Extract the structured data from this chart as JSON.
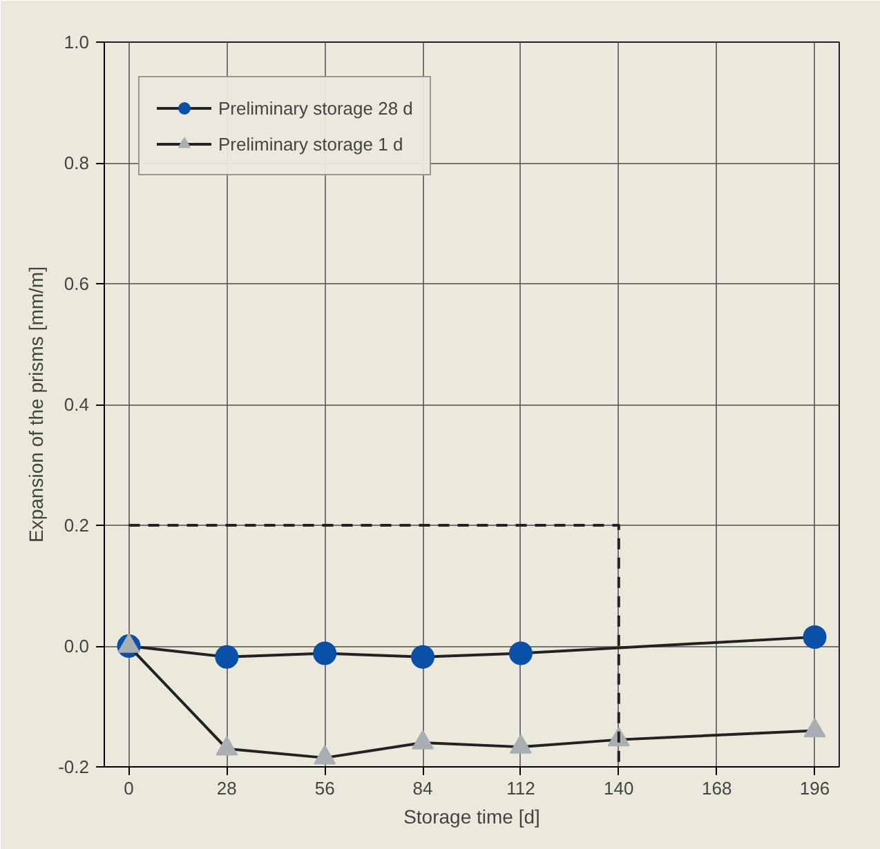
{
  "chart_data": {
    "type": "line",
    "xlabel": "Storage time [d]",
    "ylabel": "Expansion of the prisms [mm/m]",
    "series": [
      {
        "name": "Preliminary storage 28 d",
        "color": "#0a4fa8",
        "marker": "circle",
        "x": [
          0,
          28,
          56,
          84,
          112,
          196
        ],
        "values": [
          0.0,
          -0.018,
          -0.012,
          -0.018,
          -0.012,
          0.015
        ]
      },
      {
        "name": "Preliminary storage 1 d",
        "color": "#a8aeb2",
        "marker": "triangle",
        "x": [
          0,
          28,
          56,
          84,
          112,
          140,
          196
        ],
        "values": [
          0.0,
          -0.17,
          -0.185,
          -0.16,
          -0.167,
          -0.155,
          -0.14
        ]
      },
      {
        "color": "#222222",
        "marker": "none",
        "line_style": "dashed",
        "x": [
          0,
          140,
          140
        ],
        "values": [
          0.2,
          0.2,
          -0.2
        ]
      }
    ],
    "xlim": [
      -7,
      203
    ],
    "ylim": [
      -0.2,
      1.0
    ],
    "xticks": [
      0,
      28,
      56,
      84,
      112,
      140,
      168,
      196
    ],
    "yticks": [
      {
        "value": -0.2,
        "label": "-0.2"
      },
      {
        "value": 0,
        "label": "0.0"
      },
      {
        "value": 0.2,
        "label": "0.2"
      },
      {
        "value": 0.4,
        "label": "0.4"
      },
      {
        "value": 0.6,
        "label": "0.6"
      },
      {
        "value": 0.8,
        "label": "0.8"
      },
      {
        "value": 1.0,
        "label": "1.0"
      }
    ],
    "grid": true,
    "legend": "top left"
  }
}
